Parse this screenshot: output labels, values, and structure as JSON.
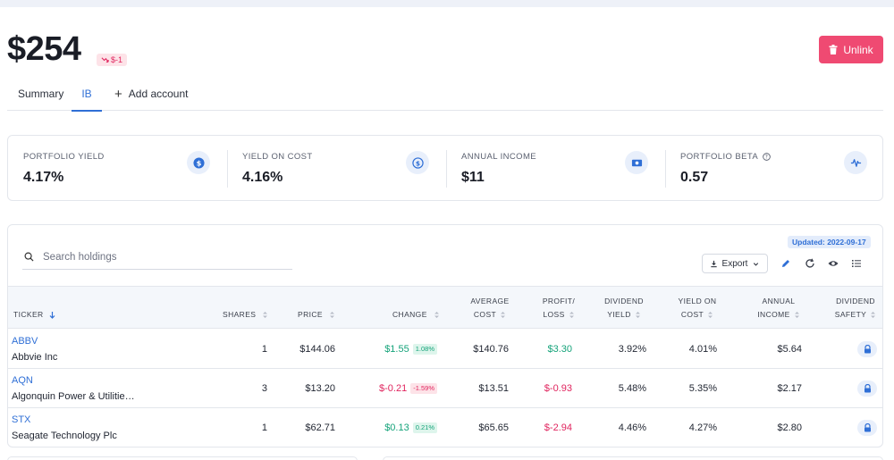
{
  "header": {
    "balance": "$254",
    "change_badge": "$-1",
    "unlink_label": "Unlink"
  },
  "tabs": [
    {
      "label": "Summary",
      "active": false
    },
    {
      "label": "IB",
      "active": true
    },
    {
      "label": "Add account",
      "active": false
    }
  ],
  "stats": [
    {
      "label": "PORTFOLIO YIELD",
      "value": "4.17%",
      "icon": "dollar-coin-icon"
    },
    {
      "label": "YIELD ON COST",
      "value": "4.16%",
      "icon": "dollar-coin-outline-icon"
    },
    {
      "label": "ANNUAL INCOME",
      "value": "$11",
      "icon": "banknote-icon"
    },
    {
      "label": "PORTFOLIO BETA",
      "value": "0.57",
      "icon": "pulse-icon",
      "help": true
    }
  ],
  "holdings": {
    "search_placeholder": "Search holdings",
    "updated": "Updated: 2022-09-17",
    "export_label": "Export",
    "columns": {
      "ticker": "TICKER",
      "shares": "SHARES",
      "price": "PRICE",
      "change": "CHANGE",
      "avg_cost_1": "AVERAGE",
      "avg_cost_2": "COST",
      "pl_1": "PROFIT/",
      "pl_2": "LOSS",
      "div_yield_1": "DIVIDEND",
      "div_yield_2": "YIELD",
      "yoc_1": "YIELD ON",
      "yoc_2": "COST",
      "income_1": "ANNUAL",
      "income_2": "INCOME",
      "safety_1": "DIVIDEND",
      "safety_2": "SAFETY"
    },
    "rows": [
      {
        "ticker": "ABBV",
        "name": "Abbvie Inc",
        "shares": "1",
        "price": "$144.06",
        "change": "$1.55",
        "change_pct": "1.08%",
        "dir": "pos",
        "avg_cost": "$140.76",
        "pl": "$3.30",
        "pl_dir": "pos",
        "div_yield": "3.92%",
        "yoc": "4.01%",
        "income": "$5.64"
      },
      {
        "ticker": "AQN",
        "name": "Algonquin Power & Utilitie…",
        "shares": "3",
        "price": "$13.20",
        "change": "$-0.21",
        "change_pct": "-1.59%",
        "dir": "neg",
        "avg_cost": "$13.51",
        "pl": "$-0.93",
        "pl_dir": "neg",
        "div_yield": "5.48%",
        "yoc": "5.35%",
        "income": "$2.17"
      },
      {
        "ticker": "STX",
        "name": "Seagate Technology Plc",
        "shares": "1",
        "price": "$62.71",
        "change": "$0.13",
        "change_pct": "0.21%",
        "dir": "pos",
        "avg_cost": "$65.65",
        "pl": "$-2.94",
        "pl_dir": "neg",
        "div_yield": "4.46%",
        "yoc": "4.27%",
        "income": "$2.80"
      }
    ]
  },
  "colors": {
    "accent": "#2f6fd6",
    "positive": "#15a37a",
    "negative": "#e0245e",
    "unlink": "#ef4a72"
  }
}
